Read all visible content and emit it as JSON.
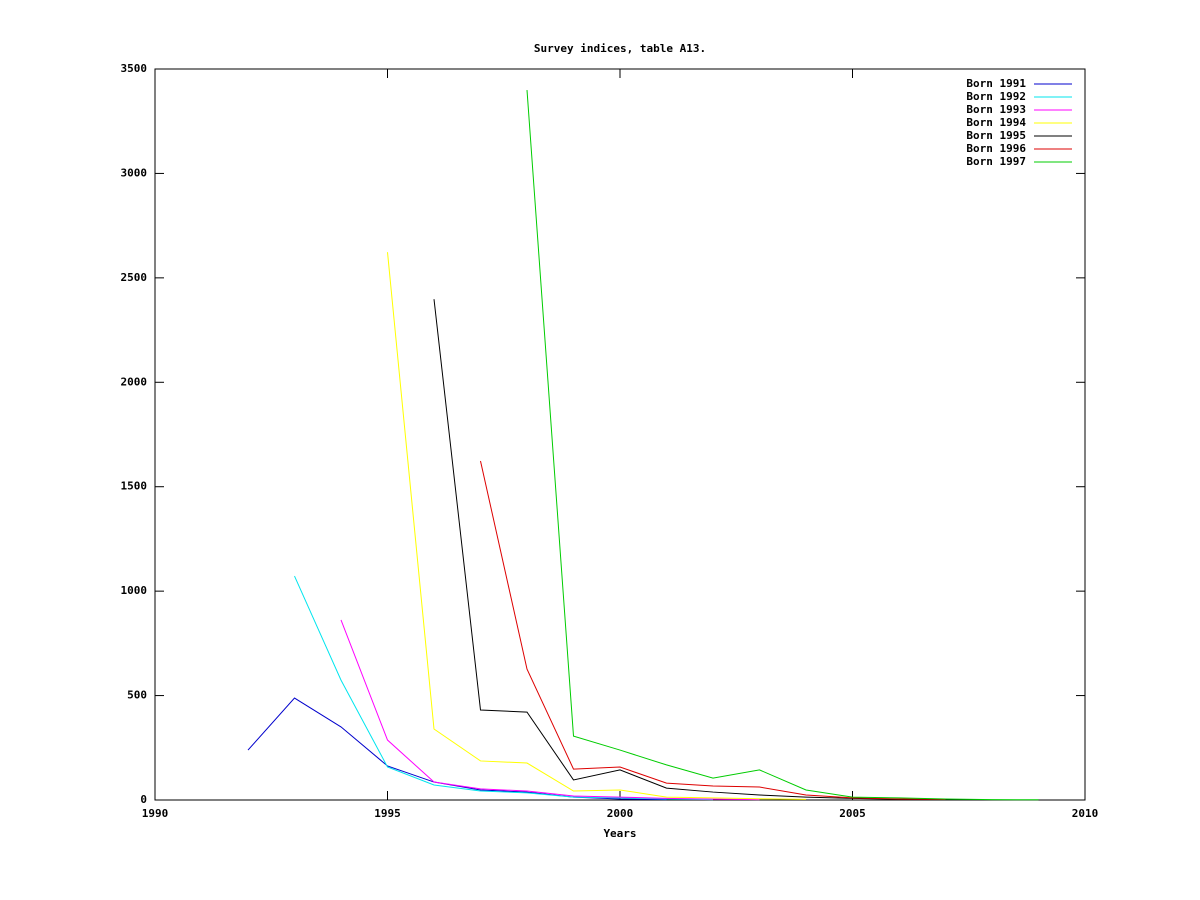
{
  "chart_data": {
    "type": "line",
    "title": "Survey indices, table A13.",
    "x_label": "Years",
    "xlim": [
      1990,
      2010
    ],
    "xticks": [
      1990,
      1995,
      2000,
      2005,
      2010
    ],
    "ylim": [
      0,
      3500
    ],
    "yticks": [
      0,
      500,
      1000,
      1500,
      2000,
      2500,
      3000,
      3500
    ],
    "grid": false,
    "legend_position": "top-right",
    "series": [
      {
        "name": "Born 1991",
        "color": "#0000cc",
        "x": [
          1992,
          1993,
          1994,
          1995,
          1996,
          1997,
          1998,
          1999,
          2000,
          2001
        ],
        "values": [
          239,
          488,
          350,
          163,
          86,
          48,
          38,
          14,
          5,
          2
        ]
      },
      {
        "name": "Born 1992",
        "color": "#00e5ee",
        "x": [
          1993,
          1994,
          1995,
          1996,
          1997,
          1998,
          1999,
          2000,
          2001,
          2002
        ],
        "values": [
          1072,
          574,
          158,
          72,
          43,
          34,
          14,
          10,
          5,
          2
        ]
      },
      {
        "name": "Born 1993",
        "color": "#ff00ff",
        "x": [
          1994,
          1995,
          1996,
          1997,
          1998,
          1999,
          2000,
          2001,
          2002,
          2003
        ],
        "values": [
          862,
          287,
          86,
          53,
          43,
          19,
          14,
          8,
          4,
          2
        ]
      },
      {
        "name": "Born 1994",
        "color": "#ffff00",
        "x": [
          1995,
          1996,
          1997,
          1998,
          1999,
          2000,
          2001,
          2002,
          2003,
          2004
        ],
        "values": [
          2623,
          340,
          187,
          177,
          43,
          48,
          14,
          10,
          6,
          3
        ]
      },
      {
        "name": "Born 1995",
        "color": "#000000",
        "x": [
          1996,
          1997,
          1998,
          1999,
          2000,
          2001,
          2002,
          2003,
          2004,
          2005,
          2006
        ],
        "values": [
          2398,
          431,
          421,
          96,
          144,
          57,
          38,
          24,
          14,
          8,
          4
        ]
      },
      {
        "name": "Born 1996",
        "color": "#dd0000",
        "x": [
          1997,
          1998,
          1999,
          2000,
          2001,
          2002,
          2003,
          2004,
          2005,
          2006,
          2007
        ],
        "values": [
          1623,
          627,
          148,
          158,
          81,
          67,
          62,
          24,
          10,
          5,
          3
        ]
      },
      {
        "name": "Born 1997",
        "color": "#00cc00",
        "x": [
          1998,
          1999,
          2000,
          2001,
          2002,
          2003,
          2004,
          2005,
          2006,
          2007,
          2008,
          2009
        ],
        "values": [
          3399,
          306,
          239,
          168,
          105,
          144,
          48,
          14,
          10,
          5,
          2,
          1
        ]
      }
    ]
  }
}
